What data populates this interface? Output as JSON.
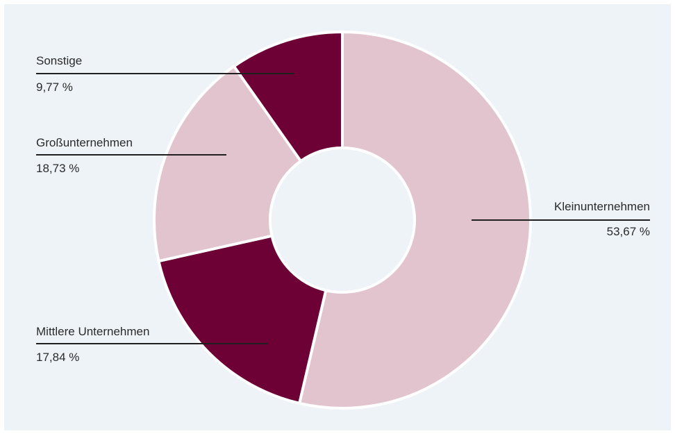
{
  "chart_data": {
    "type": "pie",
    "donut": true,
    "title": "",
    "start_angle_deg": 0,
    "direction": "clockwise",
    "slices": [
      {
        "label": "Kleinunternehmen",
        "value": 53.67,
        "value_label": "53,67 %",
        "color": "#e2c4cf"
      },
      {
        "label": "Mittlere Unternehmen",
        "value": 17.84,
        "value_label": "17,84 %",
        "color": "#6d0035"
      },
      {
        "label": "Großunternehmen",
        "value": 18.73,
        "value_label": "18,73 %",
        "color": "#e2c4cf"
      },
      {
        "label": "Sonstige",
        "value": 9.77,
        "value_label": "9,77 %",
        "color": "#6d0035"
      }
    ]
  },
  "colors": {
    "background": "#eef3f7",
    "leader_line": "#1f1f1f",
    "separator": "#ffffff"
  }
}
